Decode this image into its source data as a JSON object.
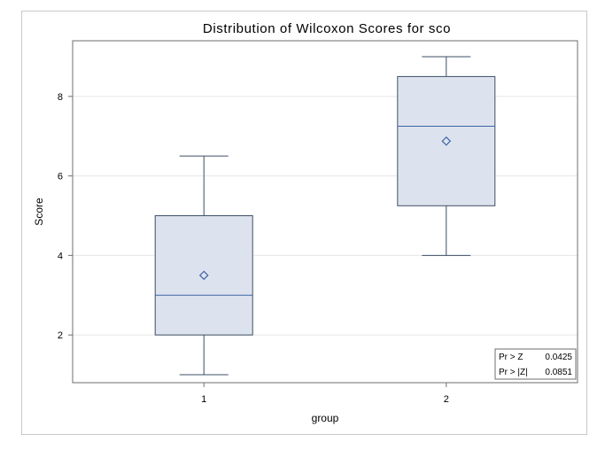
{
  "chart_data": {
    "type": "box",
    "title": "Distribution of Wilcoxon Scores for sco",
    "xlabel": "group",
    "ylabel": "Score",
    "ylim": [
      0.8,
      9.4
    ],
    "yticks": [
      2,
      4,
      6,
      8
    ],
    "grid": "horizontal",
    "categories": [
      "1",
      "2"
    ],
    "boxes": [
      {
        "category": "1",
        "whisker_low": 1.0,
        "q1": 2.0,
        "median": 3.0,
        "q3": 5.0,
        "whisker_high": 6.5,
        "mean": 3.5
      },
      {
        "category": "2",
        "whisker_low": 4.0,
        "q1": 5.25,
        "median": 7.25,
        "q3": 8.5,
        "whisker_high": 9.0,
        "mean": 6.875
      }
    ],
    "inset": {
      "placement": "bottom-right",
      "rows": [
        {
          "label": "Pr > Z",
          "value": "0.0425"
        },
        {
          "label": "Pr > |Z|",
          "value": "0.0851"
        }
      ]
    },
    "colors": {
      "box_fill": "#dde3ee",
      "box_edge": "#3c4f66",
      "median": "#3f64a8",
      "mean_marker": "#3f64a8",
      "grid": "#e6e6e6",
      "axis": "#6e6e6e"
    }
  }
}
